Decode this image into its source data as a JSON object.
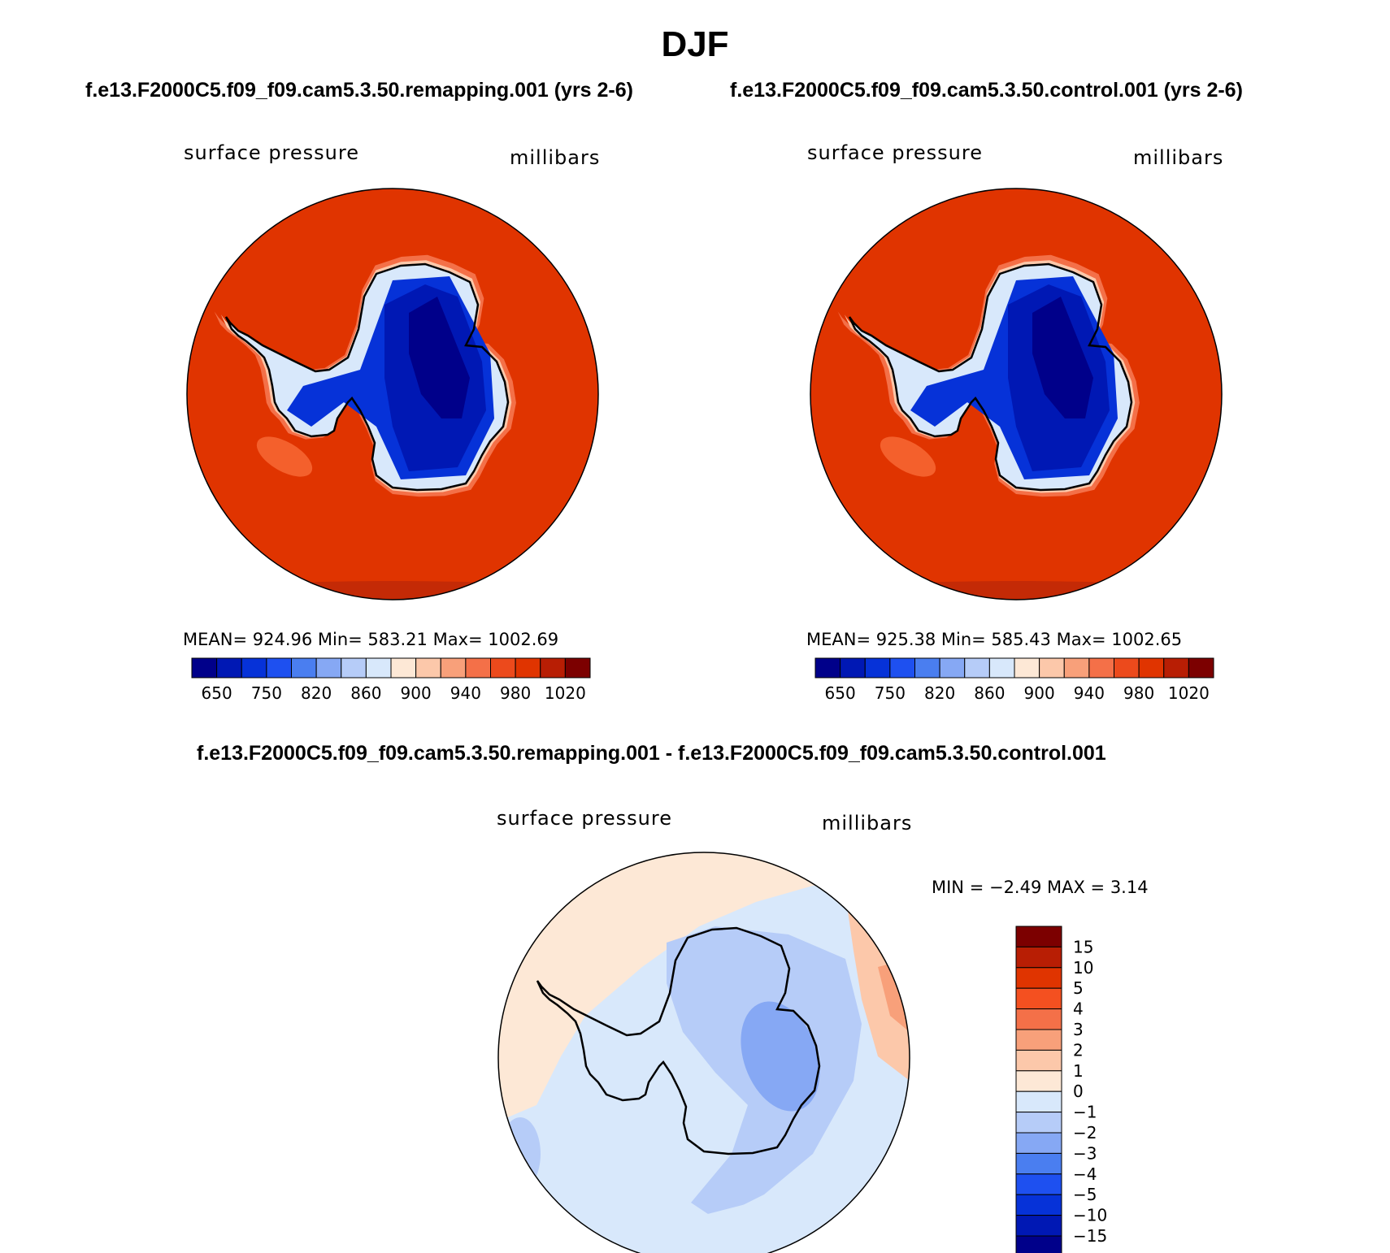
{
  "title": "DJF",
  "panels": [
    {
      "subtitle": "f.e13.F2000C5.f09_f09.cam5.3.50.remapping.001 (yrs 2-6)",
      "left_label": "surface pressure",
      "right_label": "millibars",
      "stats": "MEAN= 924.96   Min= 583.21   Max= 1002.69"
    },
    {
      "subtitle": "f.e13.F2000C5.f09_f09.cam5.3.50.control.001 (yrs 2-6)",
      "left_label": "surface pressure",
      "right_label": "millibars",
      "stats": "MEAN= 925.38   Min= 585.43   Max= 1002.65"
    }
  ],
  "diff_panel": {
    "subtitle": "f.e13.F2000C5.f09_f09.cam5.3.50.remapping.001 - f.e13.F2000C5.f09_f09.cam5.3.50.control.001",
    "left_label": "surface pressure",
    "right_label": "millibars",
    "stats": "MIN =   −2.49  MAX =    3.14"
  },
  "chart_data": [
    {
      "type": "heatmap",
      "projection": "south-polar-stereographic",
      "variable": "surface pressure",
      "units": "millibars",
      "mean": 924.96,
      "min": 583.21,
      "max": 1002.69,
      "colorbar_ticks": [
        "650",
        "750",
        "820",
        "860",
        "900",
        "940",
        "980",
        "1020"
      ],
      "colors": [
        "#00008a",
        "#0018b4",
        "#0632d8",
        "#1e50f0",
        "#4a7ef0",
        "#86a8f4",
        "#b6ccf8",
        "#d8e8fb",
        "#fde8d6",
        "#fcc8aa",
        "#f8a07a",
        "#f47048",
        "#ec4a1c",
        "#e03400",
        "#b81e04",
        "#7c0000"
      ]
    },
    {
      "type": "heatmap",
      "projection": "south-polar-stereographic",
      "variable": "surface pressure",
      "units": "millibars",
      "mean": 925.38,
      "min": 585.43,
      "max": 1002.65,
      "colorbar_ticks": [
        "650",
        "750",
        "820",
        "860",
        "900",
        "940",
        "980",
        "1020"
      ],
      "colors": [
        "#00008a",
        "#0018b4",
        "#0632d8",
        "#1e50f0",
        "#4a7ef0",
        "#86a8f4",
        "#b6ccf8",
        "#d8e8fb",
        "#fde8d6",
        "#fcc8aa",
        "#f8a07a",
        "#f47048",
        "#ec4a1c",
        "#e03400",
        "#b81e04",
        "#7c0000"
      ]
    },
    {
      "type": "heatmap",
      "projection": "south-polar-stereographic",
      "variable": "surface pressure difference",
      "units": "millibars",
      "min": -2.49,
      "max": 3.14,
      "colorbar_ticks": [
        "15",
        "10",
        "5",
        "4",
        "3",
        "2",
        "1",
        "0",
        "−1",
        "−2",
        "−3",
        "−4",
        "−5",
        "−10",
        "−15"
      ],
      "colors": [
        "#7c0000",
        "#b81e04",
        "#e03400",
        "#f45020",
        "#f47048",
        "#f8a07a",
        "#fcc8aa",
        "#fde8d6",
        "#d8e8fb",
        "#b6ccf8",
        "#86a8f4",
        "#4a7ef0",
        "#1e50f0",
        "#0632d8",
        "#0018b4",
        "#00008a"
      ]
    }
  ]
}
